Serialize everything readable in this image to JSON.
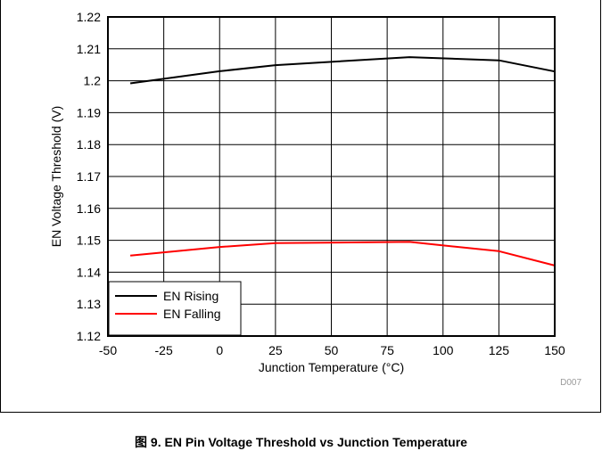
{
  "figure_code": "D007",
  "caption": "图 9. EN Pin Voltage Threshold vs Junction Temperature",
  "chart_data": {
    "type": "line",
    "xlabel": "Junction Temperature (°C)",
    "ylabel": "EN Voltage Threshold (V)",
    "xlim": [
      -50,
      150
    ],
    "ylim": [
      1.12,
      1.22
    ],
    "x_ticks": [
      "-50",
      "-25",
      "0",
      "25",
      "50",
      "75",
      "100",
      "125",
      "150"
    ],
    "y_ticks": [
      "1.22",
      "1.21",
      "1.2",
      "1.19",
      "1.18",
      "1.17",
      "1.16",
      "1.15",
      "1.14",
      "1.13",
      "1.12"
    ],
    "grid": true,
    "legend_position": "bottom-left",
    "series": [
      {
        "name": "EN Rising",
        "color": "#000000",
        "x": [
          -40,
          0,
          25,
          85,
          125,
          150
        ],
        "y": [
          1.1992,
          1.203,
          1.2049,
          1.2074,
          1.2064,
          1.2029
        ]
      },
      {
        "name": "EN Falling",
        "color": "#ff0000",
        "x": [
          -40,
          0,
          25,
          85,
          125,
          150
        ],
        "y": [
          1.1452,
          1.1479,
          1.1491,
          1.1495,
          1.1466,
          1.1421
        ]
      }
    ]
  }
}
